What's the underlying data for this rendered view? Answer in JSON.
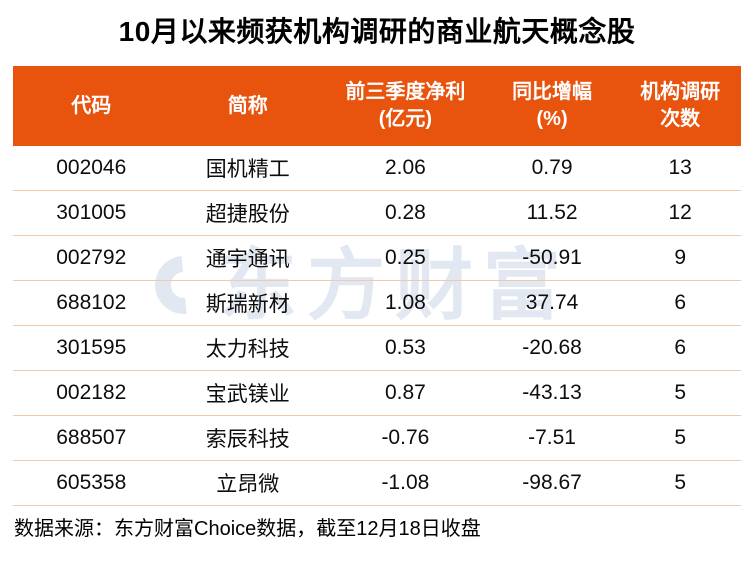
{
  "page": {
    "title": "10月以来频获机构调研的商业航天概念股",
    "source_note": "数据来源：东方财富Choice数据，截至12月18日收盘",
    "watermark_text": "东方财富"
  },
  "colors": {
    "header_bg": "#E8530E",
    "header_text": "#FFFFFF",
    "divider": "#F5C9A7",
    "title_text": "#000000",
    "watermark": "#E2E8F1"
  },
  "table": {
    "columns": [
      {
        "line1": "代码",
        "line2": ""
      },
      {
        "line1": "简称",
        "line2": ""
      },
      {
        "line1": "前三季度净利",
        "line2": "(亿元)"
      },
      {
        "line1": "同比增幅",
        "line2": "(%)"
      },
      {
        "line1": "机构调研",
        "line2": "次数"
      }
    ],
    "rows": [
      {
        "code": "002046",
        "name": "国机精工",
        "profit": "2.06",
        "yoy": "0.79",
        "visits": "13"
      },
      {
        "code": "301005",
        "name": "超捷股份",
        "profit": "0.28",
        "yoy": "11.52",
        "visits": "12"
      },
      {
        "code": "002792",
        "name": "通宇通讯",
        "profit": "0.25",
        "yoy": "-50.91",
        "visits": "9"
      },
      {
        "code": "688102",
        "name": "斯瑞新材",
        "profit": "1.08",
        "yoy": "37.74",
        "visits": "6"
      },
      {
        "code": "301595",
        "name": "太力科技",
        "profit": "0.53",
        "yoy": "-20.68",
        "visits": "6"
      },
      {
        "code": "002182",
        "name": "宝武镁业",
        "profit": "0.87",
        "yoy": "-43.13",
        "visits": "5"
      },
      {
        "code": "688507",
        "name": "索辰科技",
        "profit": "-0.76",
        "yoy": "-7.51",
        "visits": "5"
      },
      {
        "code": "605358",
        "name": "立昂微",
        "profit": "-1.08",
        "yoy": "-98.67",
        "visits": "5"
      }
    ]
  },
  "chart_data": {
    "type": "table",
    "title": "10月以来频获机构调研的商业航天概念股",
    "columns": [
      "代码",
      "简称",
      "前三季度净利(亿元)",
      "同比增幅(%)",
      "机构调研次数"
    ],
    "rows": [
      [
        "002046",
        "国机精工",
        2.06,
        0.79,
        13
      ],
      [
        "301005",
        "超捷股份",
        0.28,
        11.52,
        12
      ],
      [
        "002792",
        "通宇通讯",
        0.25,
        -50.91,
        9
      ],
      [
        "688102",
        "斯瑞新材",
        1.08,
        37.74,
        6
      ],
      [
        "301595",
        "太力科技",
        0.53,
        -20.68,
        6
      ],
      [
        "002182",
        "宝武镁业",
        0.87,
        -43.13,
        5
      ],
      [
        "688507",
        "索辰科技",
        -0.76,
        -7.51,
        5
      ],
      [
        "605358",
        "立昂微",
        -1.08,
        -98.67,
        5
      ]
    ],
    "source": "数据来源：东方财富Choice数据，截至12月18日收盘"
  }
}
